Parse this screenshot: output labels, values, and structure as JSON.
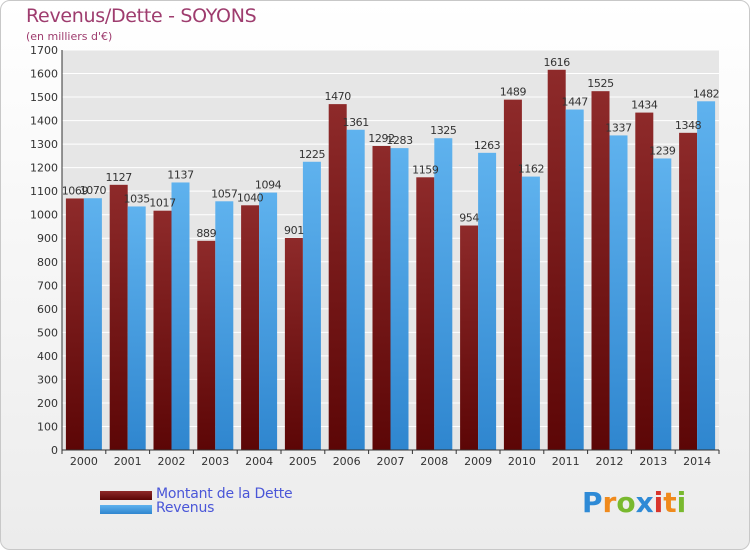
{
  "title": "Revenus/Dette - SOYONS",
  "subtitle": "(en milliers d'€)",
  "logo": {
    "text": "Proxiti",
    "letters": [
      "P",
      "r",
      "o",
      "x",
      "i",
      "t",
      "i"
    ],
    "colors": [
      "#2e8ad6",
      "#f08a1c",
      "#79b92e",
      "#2e8ad6",
      "#d9342b",
      "#f08a1c",
      "#79b92e"
    ]
  },
  "chart_data": {
    "type": "bar",
    "title": "Revenus/Dette - SOYONS",
    "ylabel": "(en milliers d'€)",
    "ylim": [
      0,
      1700
    ],
    "yticks": [
      0,
      100,
      200,
      300,
      400,
      500,
      600,
      700,
      800,
      900,
      1000,
      1100,
      1200,
      1300,
      1400,
      1500,
      1600,
      1700
    ],
    "grid": true,
    "legend": "bottom-left",
    "categories": [
      "2000",
      "2001",
      "2002",
      "2003",
      "2004",
      "2005",
      "2006",
      "2007",
      "2008",
      "2009",
      "2010",
      "2011",
      "2012",
      "2013",
      "2014"
    ],
    "series": [
      {
        "name": "Montant de la Dette",
        "color": "#7a1a1a",
        "values": [
          1069,
          1127,
          1017,
          889,
          1040,
          901,
          1470,
          1292,
          1159,
          954,
          1489,
          1616,
          1525,
          1434,
          1348
        ],
        "labels": [
          "1069",
          "1127",
          "1017",
          "889",
          "1040",
          "901",
          "1470",
          "1292",
          "1159",
          "954",
          "1489",
          "1616",
          "1525",
          "1434",
          "1348"
        ]
      },
      {
        "name": "Revenus",
        "color": "#4fa3e0",
        "values": [
          1070,
          1035,
          1137,
          1057,
          1094,
          1225,
          1361,
          1283,
          1325,
          1263,
          1162,
          1447,
          1337,
          1239,
          1482
        ],
        "labels": [
          "1070",
          "1035",
          "1137",
          "1057",
          "1094",
          "1225",
          "1361",
          "1283",
          "1325",
          "1263",
          "1162",
          "1447",
          "1337",
          "1239",
          "1482"
        ]
      }
    ]
  }
}
